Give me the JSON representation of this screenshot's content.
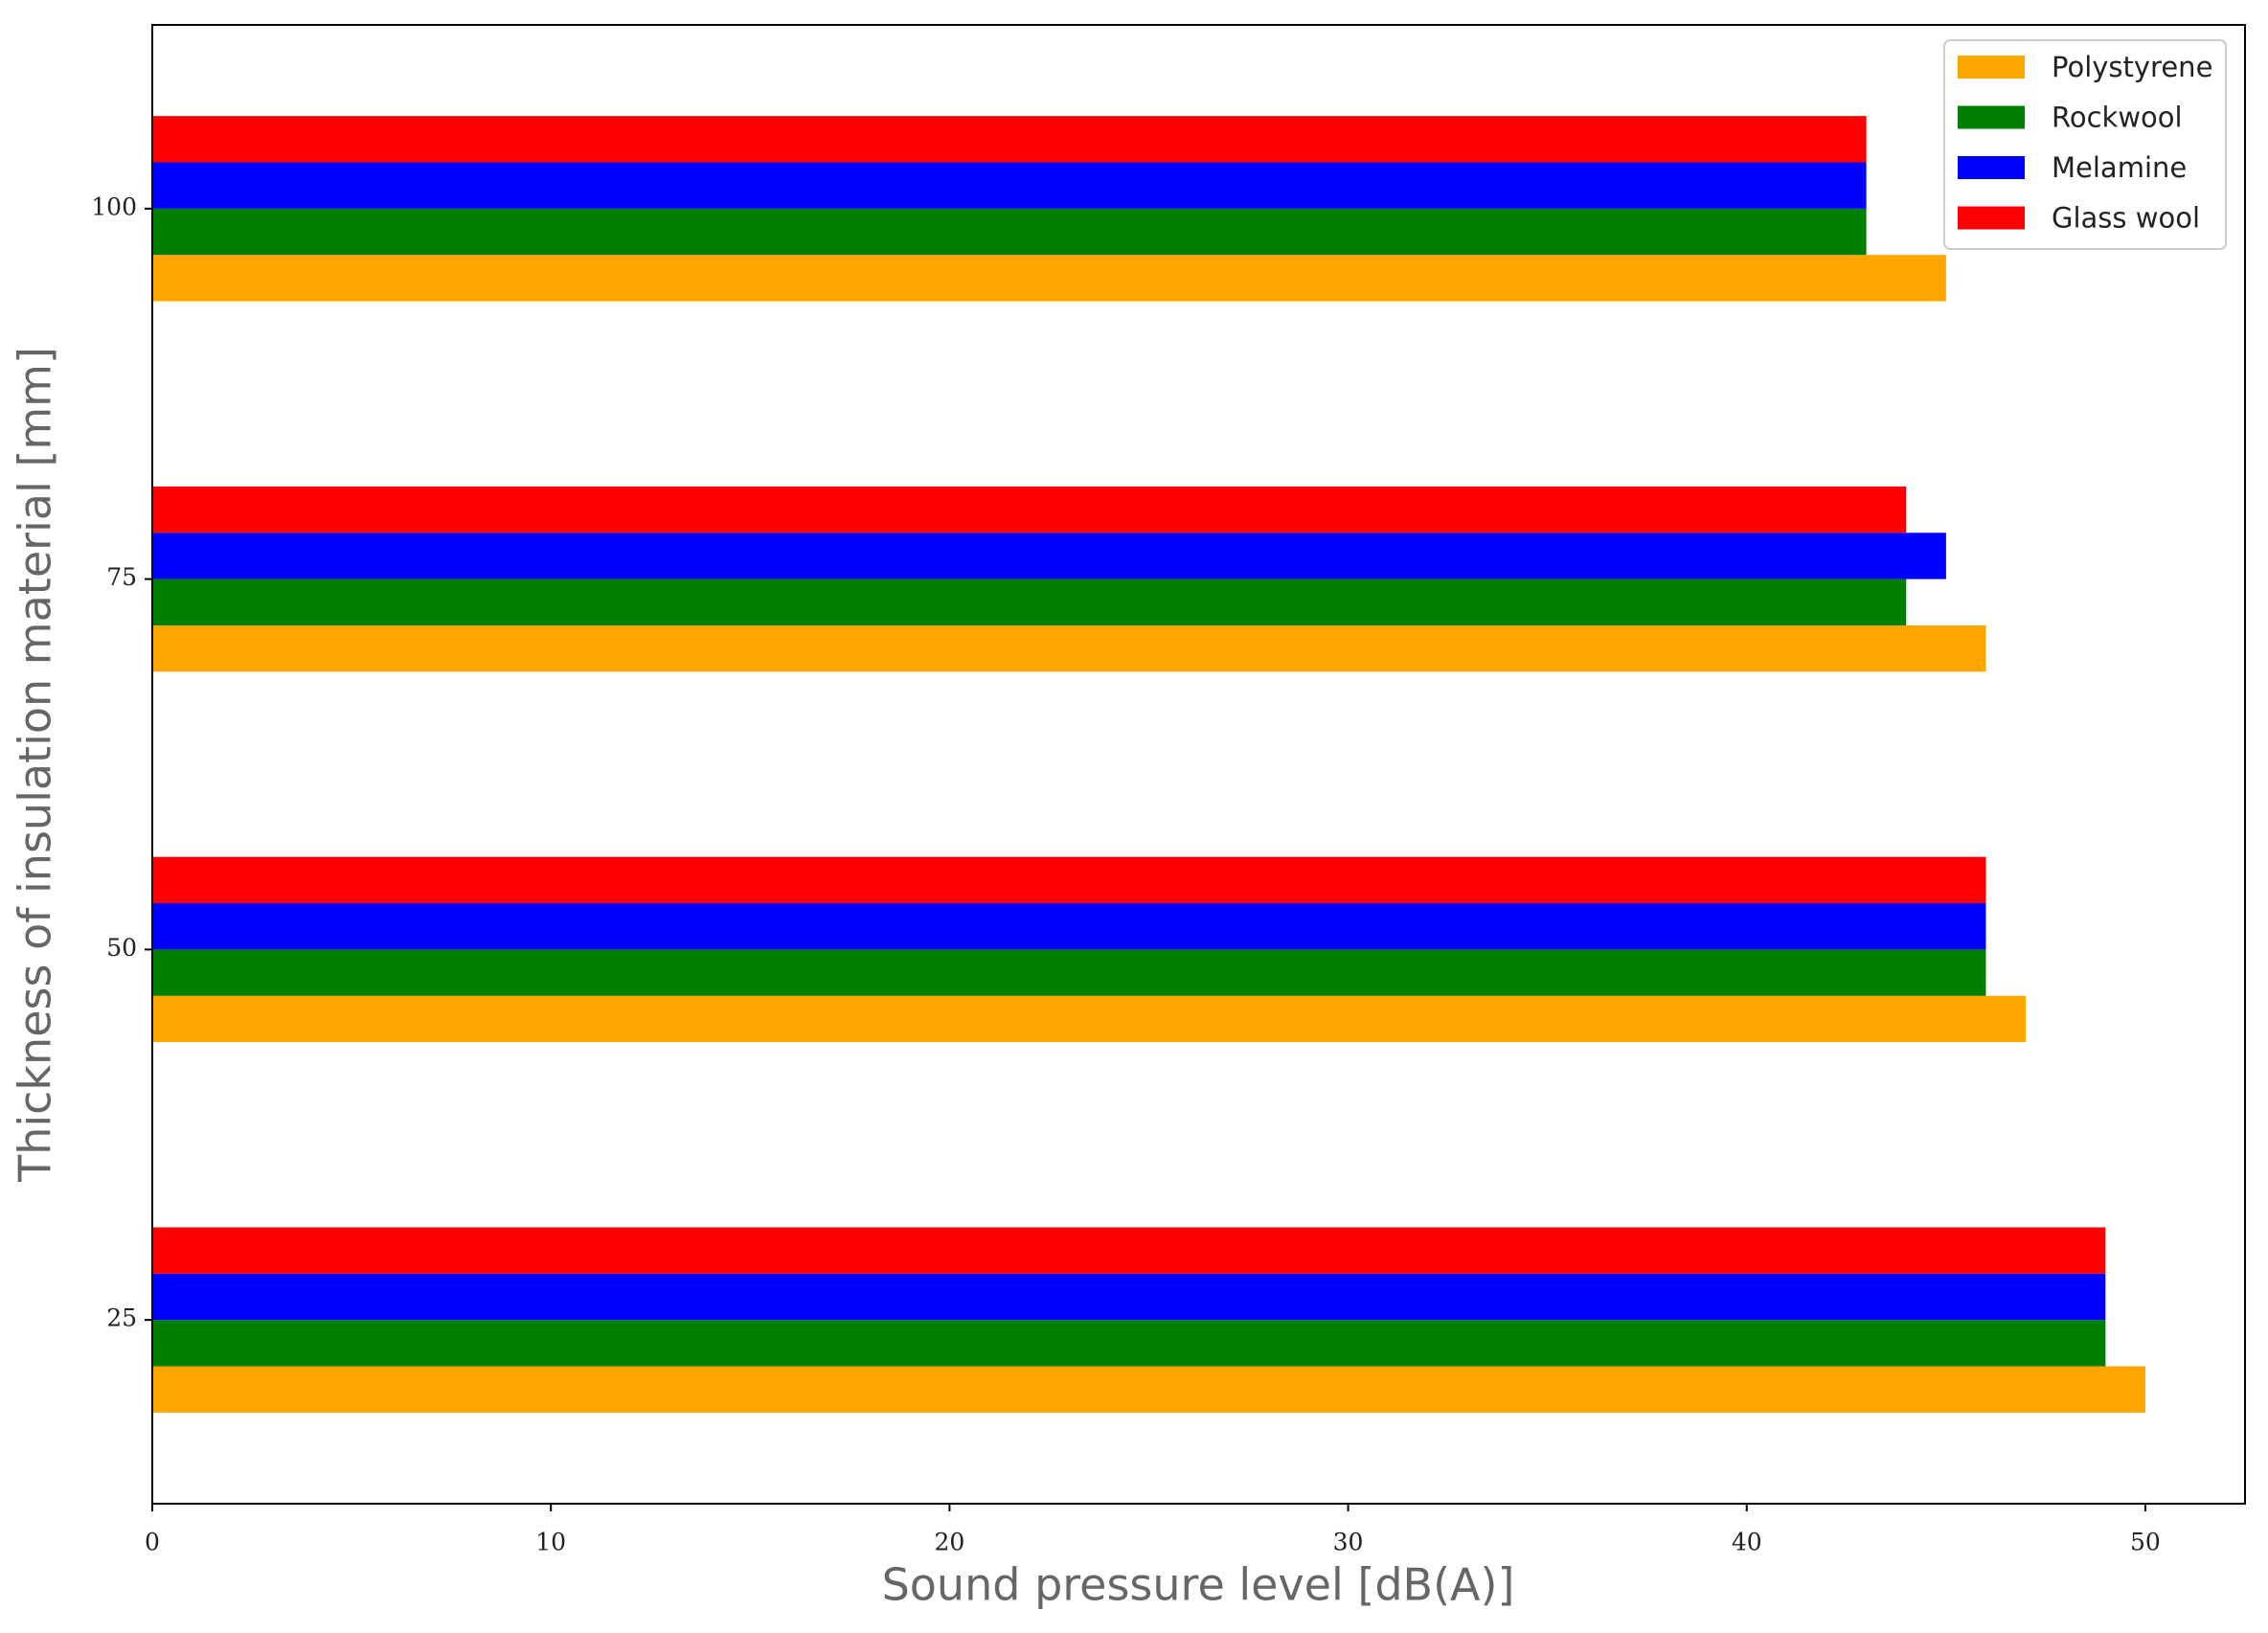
{
  "chart_data": {
    "type": "barh",
    "xlabel": "Sound pressure level [dB(A)]",
    "ylabel": "Thickness of insulation material [mm]",
    "y": [
      25,
      50,
      75,
      100
    ],
    "series": [
      {
        "name": "Polystyrene",
        "color": "#ffa500",
        "values": [
          50,
          47,
          46,
          45
        ]
      },
      {
        "name": "Rockwool",
        "color": "#008000",
        "values": [
          49,
          46,
          44,
          43
        ]
      },
      {
        "name": "Melamine",
        "color": "#0000ff",
        "values": [
          49,
          46,
          45,
          43
        ]
      },
      {
        "name": "Glass wool",
        "color": "#ff0000",
        "values": [
          49,
          46,
          44,
          43
        ]
      }
    ],
    "xlim": [
      0,
      52.5
    ],
    "xticks": [
      0,
      10,
      20,
      30,
      40,
      50
    ],
    "ylim": [
      12.6,
      112.4
    ],
    "yticks": [
      25,
      50,
      75,
      100
    ],
    "legend": "upper right"
  }
}
